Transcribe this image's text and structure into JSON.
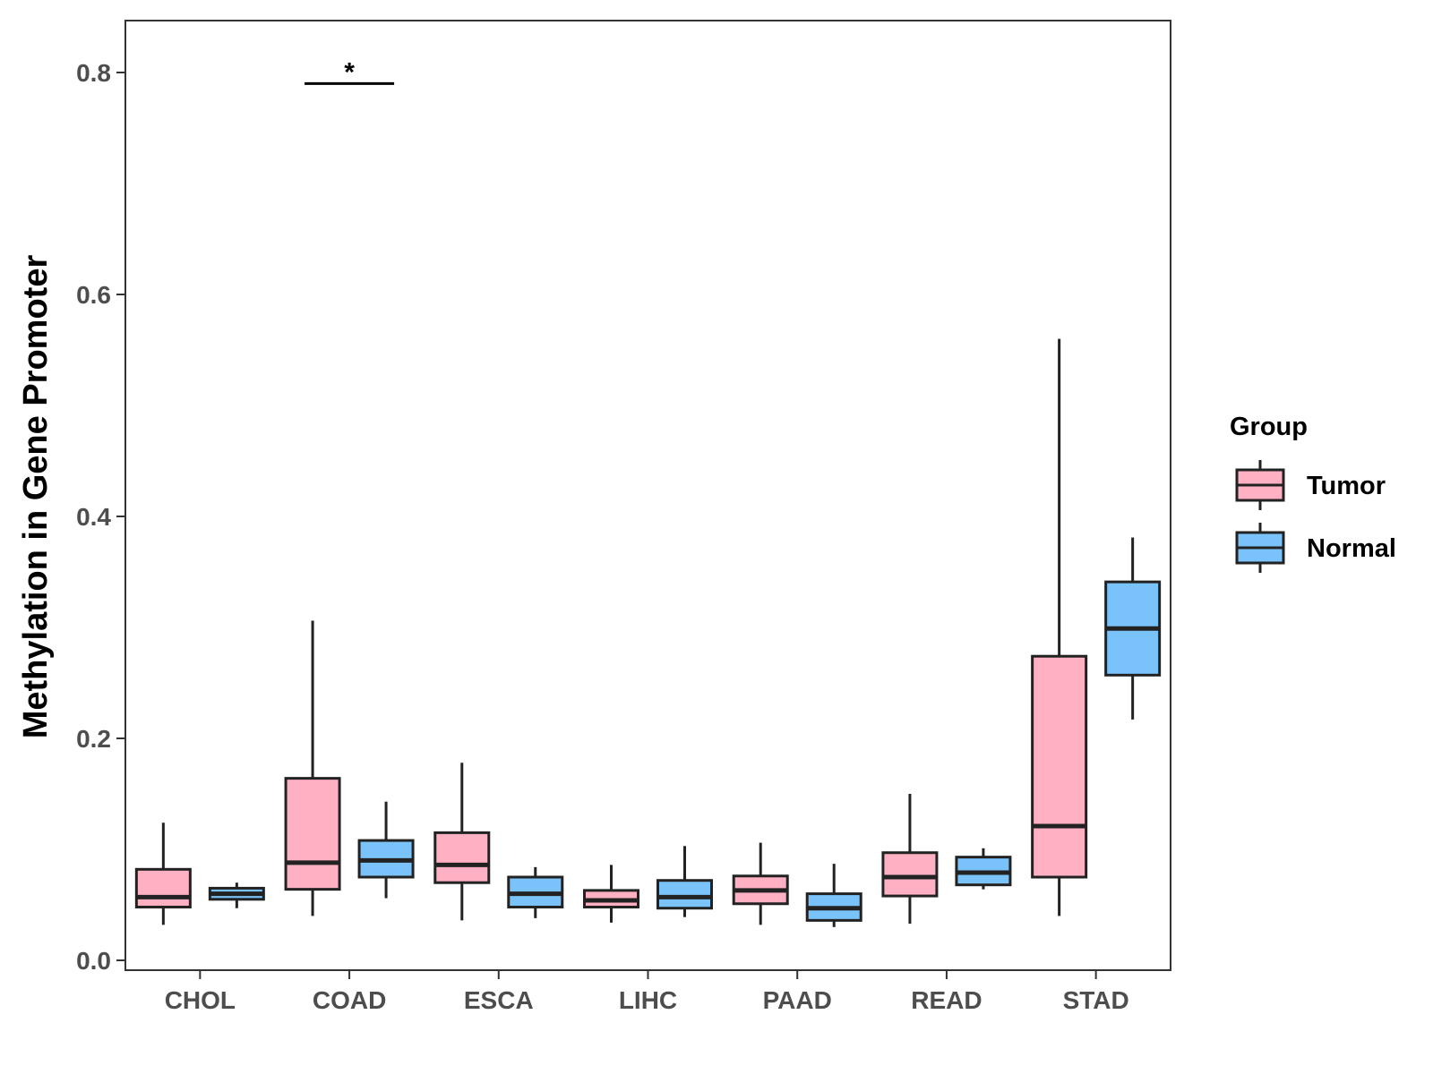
{
  "chart_data": {
    "type": "boxplot",
    "title": "",
    "xlabel": "",
    "ylabel": "Methylation in Gene Promoter",
    "ylim": [
      -0.01,
      0.845
    ],
    "yticks": [
      0.0,
      0.2,
      0.4,
      0.6,
      0.8
    ],
    "ytick_labels": [
      "0.0",
      "0.2",
      "0.4",
      "0.6",
      "0.8"
    ],
    "categories": [
      "CHOL",
      "COAD",
      "ESCA",
      "LIHC",
      "PAAD",
      "READ",
      "STAD"
    ],
    "grid": false,
    "legend": {
      "title": "Group",
      "position": "right",
      "entries": [
        {
          "name": "Tumor",
          "color": "#FFB0C2"
        },
        {
          "name": "Normal",
          "color": "#7AC3FA"
        }
      ]
    },
    "series": [
      {
        "name": "Tumor",
        "color": "#FFB0C2",
        "boxes": [
          {
            "min": 0.032,
            "q1": 0.048,
            "median": 0.057,
            "q3": 0.082,
            "max": 0.124
          },
          {
            "min": 0.04,
            "q1": 0.064,
            "median": 0.088,
            "q3": 0.164,
            "max": 0.306
          },
          {
            "min": 0.036,
            "q1": 0.07,
            "median": 0.086,
            "q3": 0.115,
            "max": 0.178
          },
          {
            "min": 0.034,
            "q1": 0.048,
            "median": 0.054,
            "q3": 0.063,
            "max": 0.086
          },
          {
            "min": 0.032,
            "q1": 0.051,
            "median": 0.063,
            "q3": 0.076,
            "max": 0.106
          },
          {
            "min": 0.033,
            "q1": 0.058,
            "median": 0.075,
            "q3": 0.097,
            "max": 0.15
          },
          {
            "min": 0.04,
            "q1": 0.075,
            "median": 0.121,
            "q3": 0.274,
            "max": 0.56
          }
        ]
      },
      {
        "name": "Normal",
        "color": "#7AC3FA",
        "boxes": [
          {
            "min": 0.047,
            "q1": 0.055,
            "median": 0.06,
            "q3": 0.065,
            "max": 0.07
          },
          {
            "min": 0.056,
            "q1": 0.075,
            "median": 0.09,
            "q3": 0.108,
            "max": 0.143
          },
          {
            "min": 0.038,
            "q1": 0.048,
            "median": 0.06,
            "q3": 0.075,
            "max": 0.084
          },
          {
            "min": 0.039,
            "q1": 0.047,
            "median": 0.057,
            "q3": 0.072,
            "max": 0.103
          },
          {
            "min": 0.03,
            "q1": 0.036,
            "median": 0.047,
            "q3": 0.06,
            "max": 0.087
          },
          {
            "min": 0.064,
            "q1": 0.068,
            "median": 0.079,
            "q3": 0.093,
            "max": 0.101
          },
          {
            "min": 0.217,
            "q1": 0.257,
            "median": 0.299,
            "q3": 0.341,
            "max": 0.381
          }
        ]
      }
    ],
    "annotations": [
      {
        "category": "COAD",
        "text": "*",
        "y": 0.79
      }
    ]
  }
}
